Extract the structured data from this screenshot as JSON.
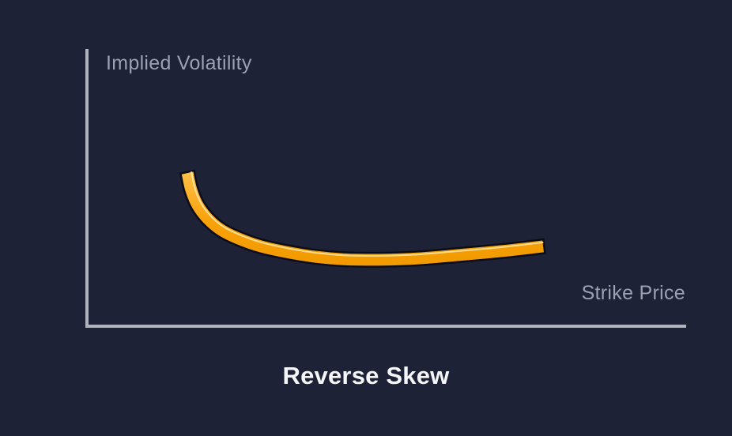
{
  "colors": {
    "bg": "#1E2236",
    "axis": "#AEB3BE",
    "label": "#9AA1B0",
    "title": "#F5F6F8",
    "curve": "#F9A20B",
    "curve-light": "#FFBE45",
    "curve-dark": "#F19B00",
    "curve-outline": "#0A0D18",
    "curve-highlight": "#FFE7AE"
  },
  "chart_data": {
    "type": "line",
    "title": "Reverse Skew",
    "xlabel": "Strike Price",
    "ylabel": "Implied Volatility",
    "x_range": [
      0,
      1
    ],
    "y_range": [
      0,
      1
    ],
    "grid": false,
    "legend": false,
    "axis_ticks": "none",
    "series": [
      {
        "name": "Implied Volatility",
        "points": [
          [
            0.17,
            0.555
          ],
          [
            0.176,
            0.496
          ],
          [
            0.187,
            0.439
          ],
          [
            0.204,
            0.391
          ],
          [
            0.226,
            0.351
          ],
          [
            0.255,
            0.32
          ],
          [
            0.292,
            0.292
          ],
          [
            0.334,
            0.272
          ],
          [
            0.382,
            0.255
          ],
          [
            0.43,
            0.246
          ],
          [
            0.489,
            0.244
          ],
          [
            0.555,
            0.249
          ],
          [
            0.621,
            0.261
          ],
          [
            0.693,
            0.275
          ],
          [
            0.762,
            0.292
          ]
        ]
      }
    ]
  }
}
